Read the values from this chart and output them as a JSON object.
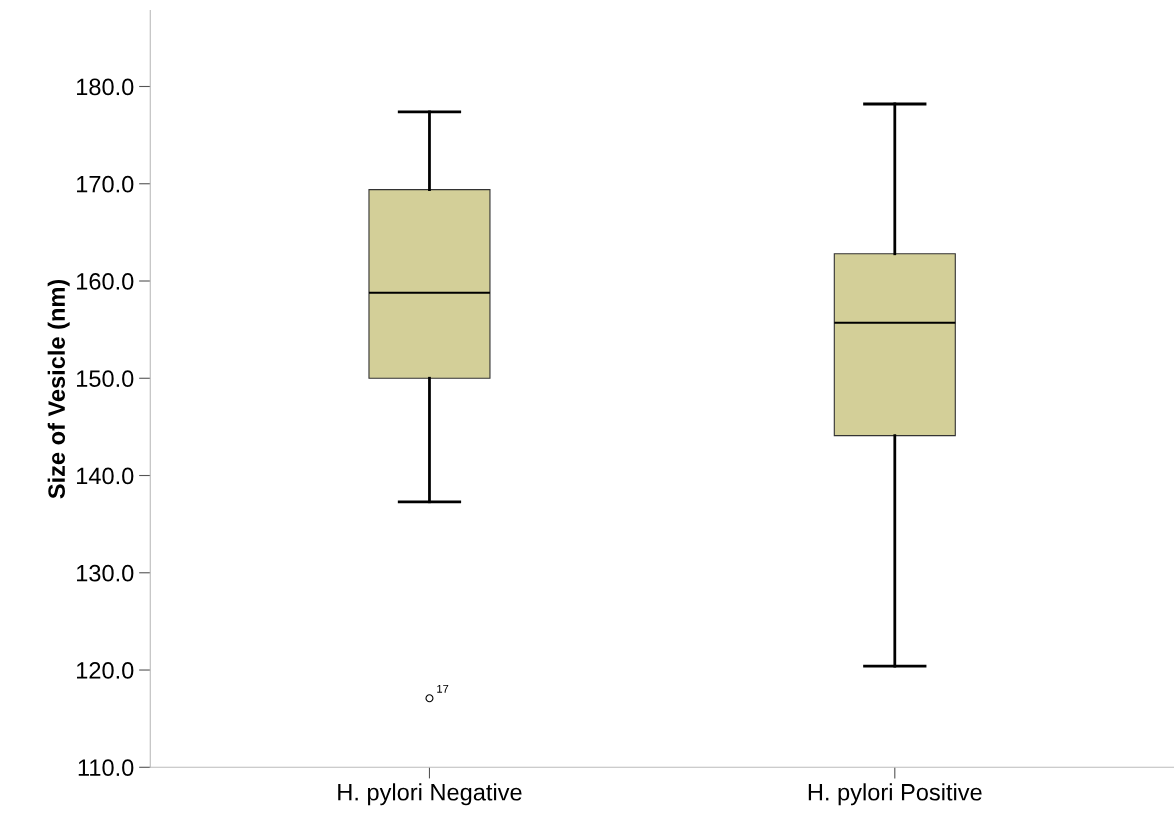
{
  "chart_data": {
    "type": "box",
    "ylabel": "Size of Vesicle (nm)",
    "categories": [
      "H. pylori Negative",
      "H. pylori Positive"
    ],
    "boxes": [
      {
        "low": 137.3,
        "q1": 150.0,
        "median": 158.8,
        "q3": 169.4,
        "high": 177.4,
        "outliers": [
          117.1
        ]
      },
      {
        "low": 120.4,
        "q1": 144.1,
        "median": 155.7,
        "q3": 162.8,
        "high": 178.2
      }
    ],
    "color": "#d3cf98",
    "annotations": [
      "17"
    ],
    "ylim": [
      110,
      187.8
    ],
    "yticks": [
      {
        "value": 110,
        "label": "110.0"
      },
      {
        "value": 120,
        "label": "120.0"
      },
      {
        "value": 130,
        "label": "130.0"
      },
      {
        "value": 140,
        "label": "140.0"
      },
      {
        "value": 150,
        "label": "150.0"
      },
      {
        "value": 160,
        "label": "160.0"
      },
      {
        "value": 170,
        "label": "170.0"
      },
      {
        "value": 180,
        "label": "180.0"
      }
    ],
    "grid": false
  }
}
